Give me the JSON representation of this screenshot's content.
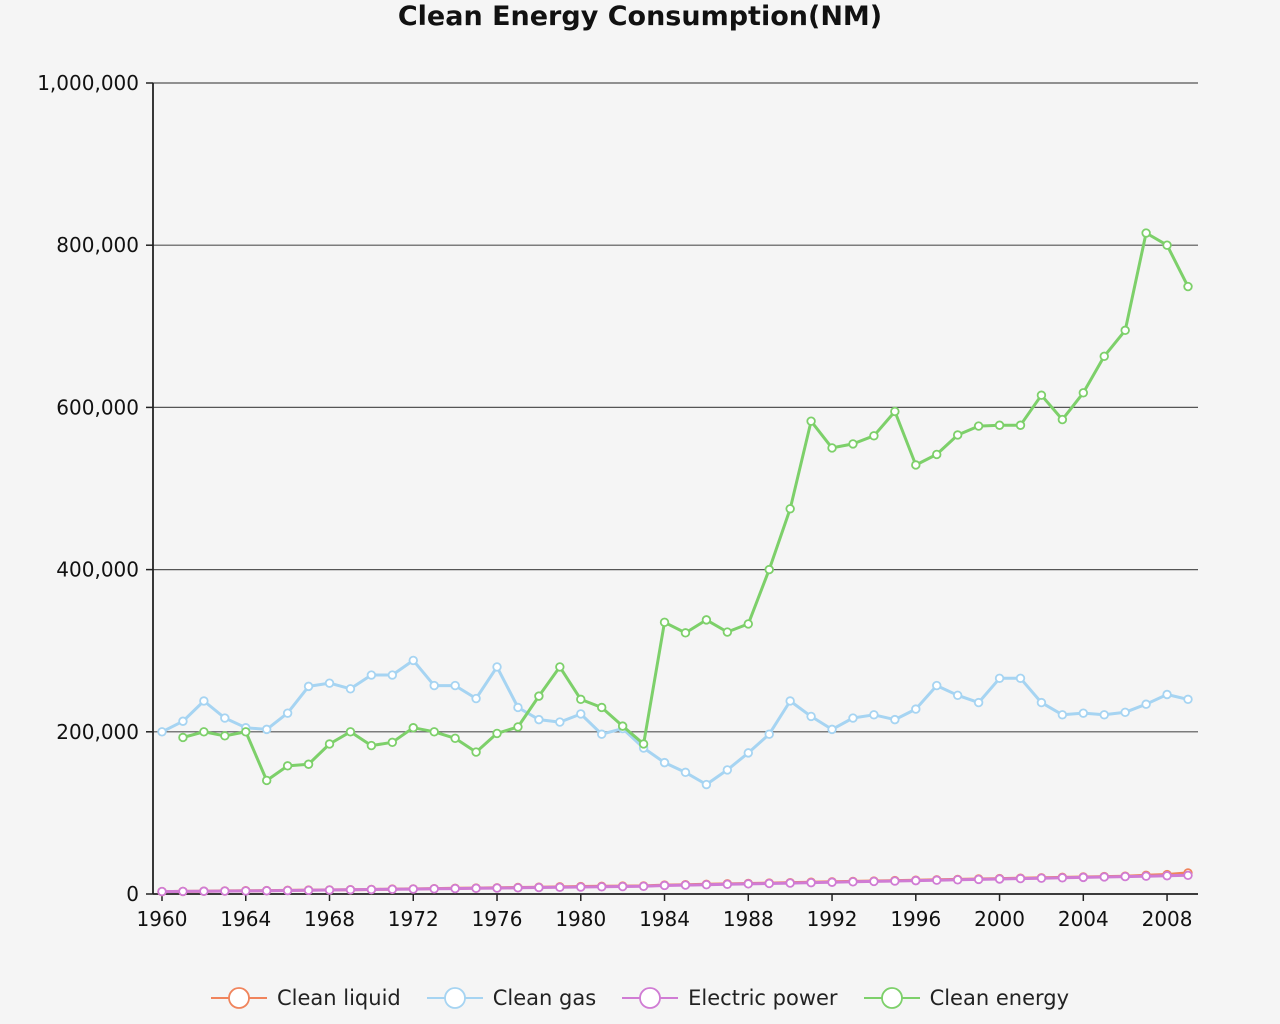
{
  "chart_data": {
    "type": "line",
    "title": "Clean Energy Consumption(NM)",
    "xlabel": "",
    "ylabel": "",
    "xlim": [
      1960,
      2009
    ],
    "ylim": [
      0,
      1000000
    ],
    "y_ticks": [
      0,
      200000,
      400000,
      600000,
      800000,
      1000000
    ],
    "y_tick_labels": [
      "0",
      "200,000",
      "400,000",
      "600,000",
      "800,000",
      "1,000,000"
    ],
    "x_ticks": [
      1960,
      1964,
      1968,
      1972,
      1976,
      1980,
      1984,
      1988,
      1992,
      1996,
      2000,
      2004,
      2008
    ],
    "x_tick_labels": [
      "1960",
      "1964",
      "1968",
      "1972",
      "1976",
      "1980",
      "1984",
      "1988",
      "1992",
      "1996",
      "2000",
      "2004",
      "2008"
    ],
    "grid": true,
    "legend_position": "bottom",
    "x": [
      1960,
      1961,
      1962,
      1963,
      1964,
      1965,
      1966,
      1967,
      1968,
      1969,
      1970,
      1971,
      1972,
      1973,
      1974,
      1975,
      1976,
      1977,
      1978,
      1979,
      1980,
      1981,
      1982,
      1983,
      1984,
      1985,
      1986,
      1987,
      1988,
      1989,
      1990,
      1991,
      1992,
      1993,
      1994,
      1995,
      1996,
      1997,
      1998,
      1999,
      2000,
      2001,
      2002,
      2003,
      2004,
      2005,
      2006,
      2007,
      2008,
      2009
    ],
    "series": [
      {
        "name": "Clean liquid",
        "color": "#f0845c",
        "values": [
          3000,
          3200,
          3500,
          3800,
          4000,
          4200,
          4500,
          4800,
          5000,
          5300,
          5600,
          6000,
          6300,
          6600,
          7000,
          7300,
          7600,
          8000,
          8400,
          8800,
          9200,
          9500,
          9800,
          10000,
          11000,
          11500,
          12000,
          12500,
          13000,
          13500,
          14000,
          14500,
          15000,
          15500,
          16000,
          16500,
          17000,
          17500,
          18000,
          18500,
          19000,
          19500,
          20000,
          20500,
          21000,
          21500,
          22000,
          23000,
          24000,
          26000
        ]
      },
      {
        "name": "Clean gas",
        "color": "#a6d4f2",
        "values": [
          200000,
          213000,
          238000,
          217000,
          205000,
          203000,
          223000,
          256000,
          260000,
          253000,
          270000,
          270000,
          288000,
          257000,
          257000,
          241000,
          280000,
          230000,
          215000,
          212000,
          222000,
          197000,
          204000,
          180000,
          162000,
          150000,
          135000,
          153000,
          174000,
          197000,
          238000,
          219000,
          203000,
          217000,
          221000,
          215000,
          228000,
          257000,
          245000,
          236000,
          266000,
          266000,
          236000,
          221000,
          223000,
          221000,
          224000,
          234000,
          246000,
          240000
        ]
      },
      {
        "name": "Electric power",
        "color": "#d07cd4",
        "values": [
          3000,
          3200,
          3400,
          3600,
          3800,
          4000,
          4300,
          4600,
          4900,
          5200,
          5500,
          5800,
          6100,
          6400,
          6700,
          7000,
          7300,
          7600,
          8000,
          8300,
          8600,
          8900,
          9200,
          9500,
          10500,
          11000,
          11500,
          12000,
          12500,
          13000,
          13500,
          14000,
          14500,
          15000,
          15500,
          16000,
          16500,
          17000,
          17500,
          18000,
          18500,
          19000,
          19500,
          20000,
          20500,
          21000,
          21500,
          22000,
          22500,
          23000
        ]
      },
      {
        "name": "Clean energy",
        "color": "#7dd06a",
        "values": [
          null,
          193000,
          200000,
          195000,
          200000,
          140000,
          158000,
          160000,
          185000,
          200000,
          183000,
          187000,
          205000,
          200000,
          192000,
          175000,
          198000,
          206000,
          244000,
          280000,
          240000,
          230000,
          207000,
          185000,
          335000,
          322000,
          338000,
          323000,
          333000,
          400000,
          475000,
          583000,
          550000,
          555000,
          565000,
          595000,
          529000,
          542000,
          566000,
          577000,
          578000,
          578000,
          615000,
          585000,
          618000,
          663000,
          695000,
          815000,
          800000,
          749000
        ]
      }
    ]
  }
}
